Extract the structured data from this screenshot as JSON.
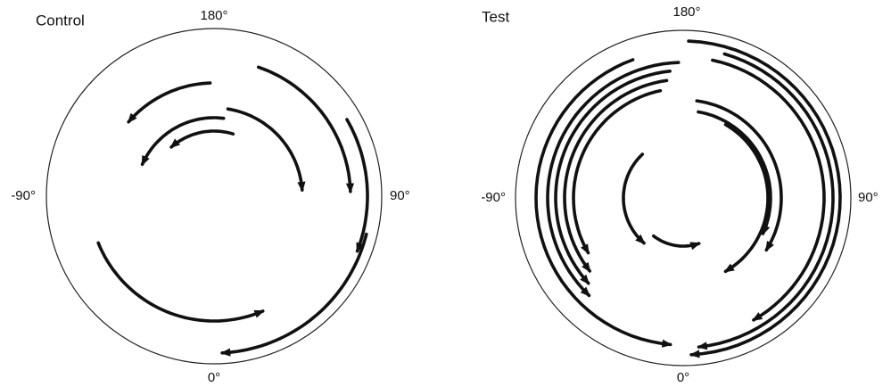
{
  "panels": [
    {
      "title": "Control",
      "labels": {
        "top": "180°",
        "left": "-90°",
        "right": "90°",
        "bottom": "0°"
      }
    },
    {
      "title": "Test",
      "labels": {
        "top": "180°",
        "left": "-90°",
        "right": "90°",
        "bottom": "0°"
      }
    }
  ]
}
